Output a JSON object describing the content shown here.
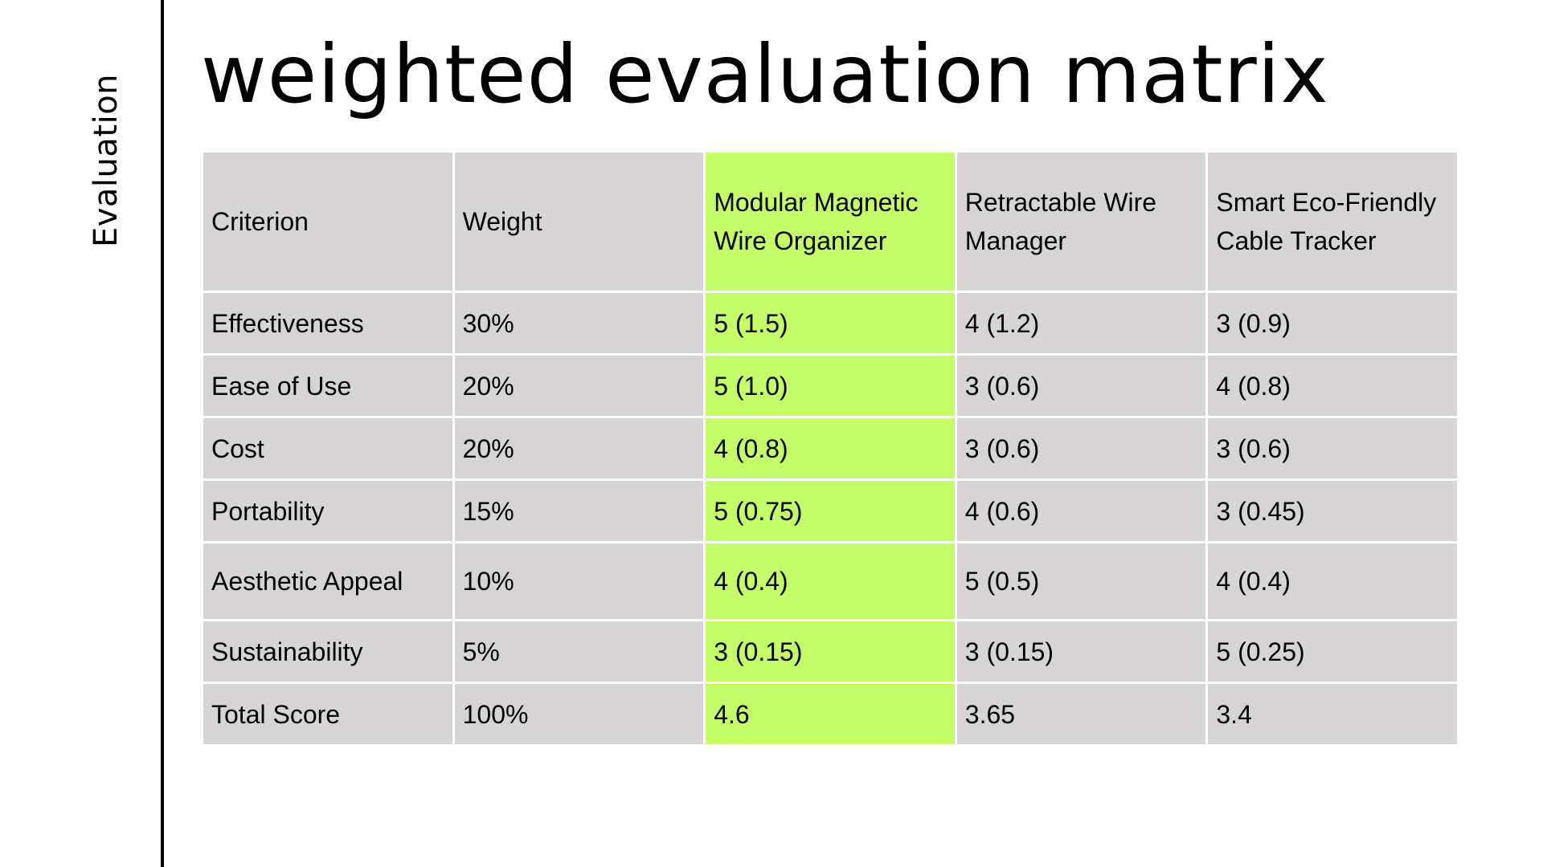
{
  "sidebar": {
    "label": "Evaluation"
  },
  "title": "weighted evaluation matrix",
  "highlight_color": "#c5fd6a",
  "cell_color": "#d6d4d5",
  "table": {
    "headers": [
      "Criterion",
      "Weight",
      "Modular Magnetic Wire Organizer",
      "Retractable Wire Manager",
      "Smart Eco-Friendly Cable Tracker"
    ],
    "highlighted_column": 2,
    "rows": [
      [
        "Effectiveness",
        "30%",
        "5 (1.5)",
        "4 (1.2)",
        "3 (0.9)"
      ],
      [
        "Ease of Use",
        "20%",
        "5 (1.0)",
        "3 (0.6)",
        "4 (0.8)"
      ],
      [
        "Cost",
        "20%",
        "4 (0.8)",
        "3 (0.6)",
        "3 (0.6)"
      ],
      [
        "Portability",
        "15%",
        "5 (0.75)",
        "4 (0.6)",
        "3 (0.45)"
      ],
      [
        "Aesthetic Appeal",
        "10%",
        "4 (0.4)",
        "5 (0.5)",
        "4 (0.4)"
      ],
      [
        "Sustainability",
        "5%",
        "3 (0.15)",
        "3 (0.15)",
        "5 (0.25)"
      ],
      [
        "Total Score",
        "100%",
        "4.6",
        "3.65",
        "3.4"
      ]
    ]
  }
}
